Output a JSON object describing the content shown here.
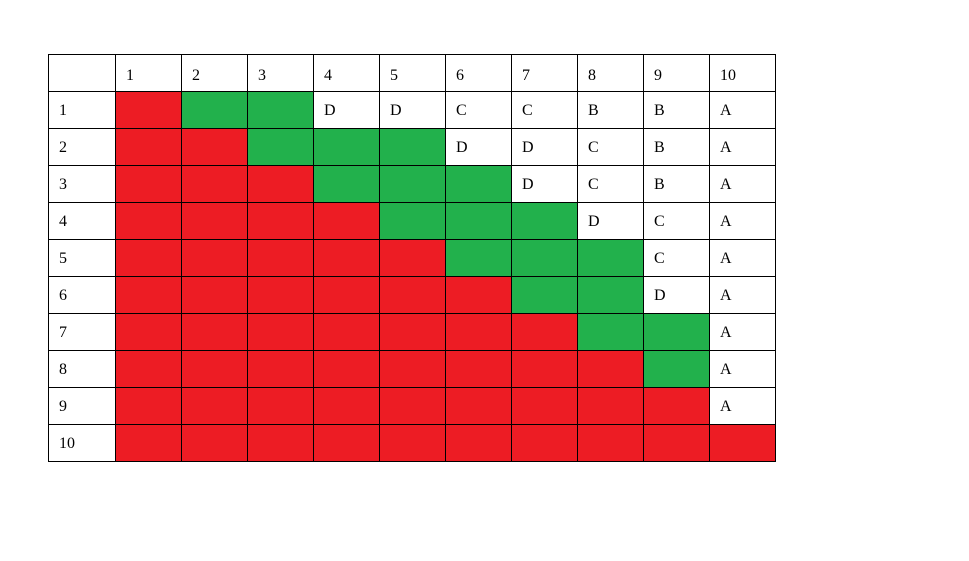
{
  "table": {
    "col_headers": [
      "1",
      "2",
      "3",
      "4",
      "5",
      "6",
      "7",
      "8",
      "9",
      "10"
    ],
    "colors": {
      "red": "#ed1c24",
      "green": "#22b14c",
      "white": "#ffffff"
    },
    "rows": [
      {
        "label": "1",
        "cells": [
          {
            "c": "red",
            "t": ""
          },
          {
            "c": "green",
            "t": ""
          },
          {
            "c": "green",
            "t": ""
          },
          {
            "c": "white",
            "t": "D"
          },
          {
            "c": "white",
            "t": "D"
          },
          {
            "c": "white",
            "t": "C"
          },
          {
            "c": "white",
            "t": "C"
          },
          {
            "c": "white",
            "t": "B"
          },
          {
            "c": "white",
            "t": "B"
          },
          {
            "c": "white",
            "t": "A"
          }
        ]
      },
      {
        "label": "2",
        "cells": [
          {
            "c": "red",
            "t": ""
          },
          {
            "c": "red",
            "t": ""
          },
          {
            "c": "green",
            "t": ""
          },
          {
            "c": "green",
            "t": ""
          },
          {
            "c": "green",
            "t": ""
          },
          {
            "c": "white",
            "t": "D"
          },
          {
            "c": "white",
            "t": "D"
          },
          {
            "c": "white",
            "t": "C"
          },
          {
            "c": "white",
            "t": "B"
          },
          {
            "c": "white",
            "t": "A"
          }
        ]
      },
      {
        "label": "3",
        "cells": [
          {
            "c": "red",
            "t": ""
          },
          {
            "c": "red",
            "t": ""
          },
          {
            "c": "red",
            "t": ""
          },
          {
            "c": "green",
            "t": ""
          },
          {
            "c": "green",
            "t": ""
          },
          {
            "c": "green",
            "t": ""
          },
          {
            "c": "white",
            "t": "D"
          },
          {
            "c": "white",
            "t": "C"
          },
          {
            "c": "white",
            "t": "B"
          },
          {
            "c": "white",
            "t": "A"
          }
        ]
      },
      {
        "label": "4",
        "cells": [
          {
            "c": "red",
            "t": ""
          },
          {
            "c": "red",
            "t": ""
          },
          {
            "c": "red",
            "t": ""
          },
          {
            "c": "red",
            "t": ""
          },
          {
            "c": "green",
            "t": ""
          },
          {
            "c": "green",
            "t": ""
          },
          {
            "c": "green",
            "t": ""
          },
          {
            "c": "white",
            "t": "D"
          },
          {
            "c": "white",
            "t": "C"
          },
          {
            "c": "white",
            "t": "A"
          }
        ]
      },
      {
        "label": "5",
        "cells": [
          {
            "c": "red",
            "t": ""
          },
          {
            "c": "red",
            "t": ""
          },
          {
            "c": "red",
            "t": ""
          },
          {
            "c": "red",
            "t": ""
          },
          {
            "c": "red",
            "t": ""
          },
          {
            "c": "green",
            "t": ""
          },
          {
            "c": "green",
            "t": ""
          },
          {
            "c": "green",
            "t": ""
          },
          {
            "c": "white",
            "t": "C"
          },
          {
            "c": "white",
            "t": "A"
          }
        ]
      },
      {
        "label": "6",
        "cells": [
          {
            "c": "red",
            "t": ""
          },
          {
            "c": "red",
            "t": ""
          },
          {
            "c": "red",
            "t": ""
          },
          {
            "c": "red",
            "t": ""
          },
          {
            "c": "red",
            "t": ""
          },
          {
            "c": "red",
            "t": ""
          },
          {
            "c": "green",
            "t": ""
          },
          {
            "c": "green",
            "t": ""
          },
          {
            "c": "white",
            "t": "D"
          },
          {
            "c": "white",
            "t": "A"
          }
        ]
      },
      {
        "label": "7",
        "cells": [
          {
            "c": "red",
            "t": ""
          },
          {
            "c": "red",
            "t": ""
          },
          {
            "c": "red",
            "t": ""
          },
          {
            "c": "red",
            "t": ""
          },
          {
            "c": "red",
            "t": ""
          },
          {
            "c": "red",
            "t": ""
          },
          {
            "c": "red",
            "t": ""
          },
          {
            "c": "green",
            "t": ""
          },
          {
            "c": "green",
            "t": ""
          },
          {
            "c": "white",
            "t": "A"
          }
        ]
      },
      {
        "label": "8",
        "cells": [
          {
            "c": "red",
            "t": ""
          },
          {
            "c": "red",
            "t": ""
          },
          {
            "c": "red",
            "t": ""
          },
          {
            "c": "red",
            "t": ""
          },
          {
            "c": "red",
            "t": ""
          },
          {
            "c": "red",
            "t": ""
          },
          {
            "c": "red",
            "t": ""
          },
          {
            "c": "red",
            "t": ""
          },
          {
            "c": "green",
            "t": ""
          },
          {
            "c": "white",
            "t": "A"
          }
        ]
      },
      {
        "label": "9",
        "cells": [
          {
            "c": "red",
            "t": ""
          },
          {
            "c": "red",
            "t": ""
          },
          {
            "c": "red",
            "t": ""
          },
          {
            "c": "red",
            "t": ""
          },
          {
            "c": "red",
            "t": ""
          },
          {
            "c": "red",
            "t": ""
          },
          {
            "c": "red",
            "t": ""
          },
          {
            "c": "red",
            "t": ""
          },
          {
            "c": "red",
            "t": ""
          },
          {
            "c": "white",
            "t": "A"
          }
        ]
      },
      {
        "label": "10",
        "cells": [
          {
            "c": "red",
            "t": ""
          },
          {
            "c": "red",
            "t": ""
          },
          {
            "c": "red",
            "t": ""
          },
          {
            "c": "red",
            "t": ""
          },
          {
            "c": "red",
            "t": ""
          },
          {
            "c": "red",
            "t": ""
          },
          {
            "c": "red",
            "t": ""
          },
          {
            "c": "red",
            "t": ""
          },
          {
            "c": "red",
            "t": ""
          },
          {
            "c": "red",
            "t": ""
          }
        ]
      }
    ]
  }
}
